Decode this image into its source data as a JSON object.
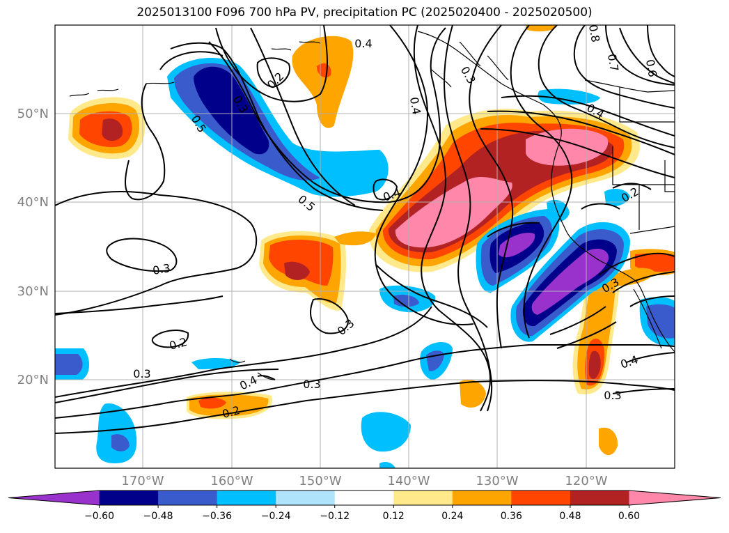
{
  "title": "2025013100 F096 700 hPa PV, precipitation PC (2025020400 - 2025020500)",
  "map": {
    "lat_labels": [
      "50°N",
      "40°N",
      "30°N",
      "20°N"
    ],
    "lon_labels": [
      "170°W",
      "160°W",
      "150°W",
      "140°W",
      "130°W",
      "120°W"
    ],
    "grid": true
  },
  "colorbar": {
    "colors": [
      "#9932CC",
      "#00008B",
      "#3A5BCC",
      "#00BFFF",
      "#AEE3FB",
      "#FFFFFF",
      "#FFE98A",
      "#FFA500",
      "#FF4500",
      "#B22222",
      "#FF88AA"
    ],
    "tick_labels": [
      "−0.60",
      "−0.48",
      "−0.36",
      "−0.24",
      "−0.12",
      "0.12",
      "0.24",
      "0.36",
      "0.48",
      "0.60"
    ],
    "extend": "both"
  },
  "contour_labels": [
    "0.4",
    "0.2",
    "0.3",
    "0.8",
    "0.7",
    "0.6",
    "0.4",
    "0.5",
    "0.5",
    "0.3",
    "0.4",
    "0.3",
    "0.3",
    "0.2",
    "0.3",
    "0.4",
    "0.3",
    "0.2",
    "0.3",
    "0.4",
    "0.2",
    "0.3",
    "0.4"
  ]
}
